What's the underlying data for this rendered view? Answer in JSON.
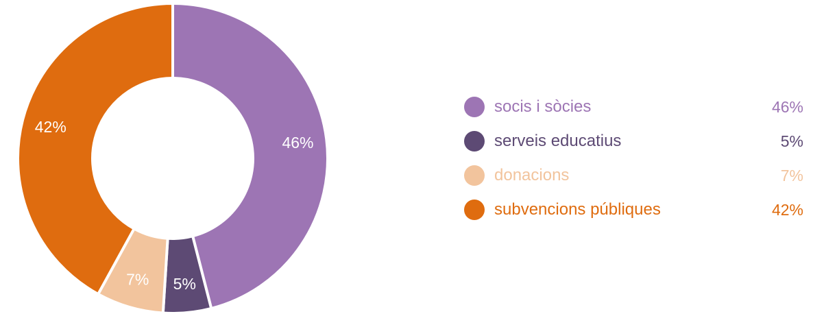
{
  "chart_data": {
    "type": "pie",
    "categories": [
      "socis i sòcies",
      "serveis educatius",
      "donacions",
      "subvencions públiques"
    ],
    "values": [
      46,
      5,
      7,
      42
    ],
    "slice_labels": [
      "46%",
      "5%",
      "7%",
      "42%"
    ],
    "colors": [
      "#9d75b4",
      "#5d4a74",
      "#f2c49d",
      "#df6c0f"
    ],
    "title": "",
    "donut": true,
    "legend_position": "right"
  },
  "legend": {
    "items": [
      {
        "label": "socis i sòcies",
        "value": "46%",
        "color": "#9d75b4"
      },
      {
        "label": "serveis educatius",
        "value": "5%",
        "color": "#5d4a74"
      },
      {
        "label": "donacions",
        "value": "7%",
        "color": "#f2c49d"
      },
      {
        "label": "subvencions públiques",
        "value": "42%",
        "color": "#df6c0f"
      }
    ]
  }
}
